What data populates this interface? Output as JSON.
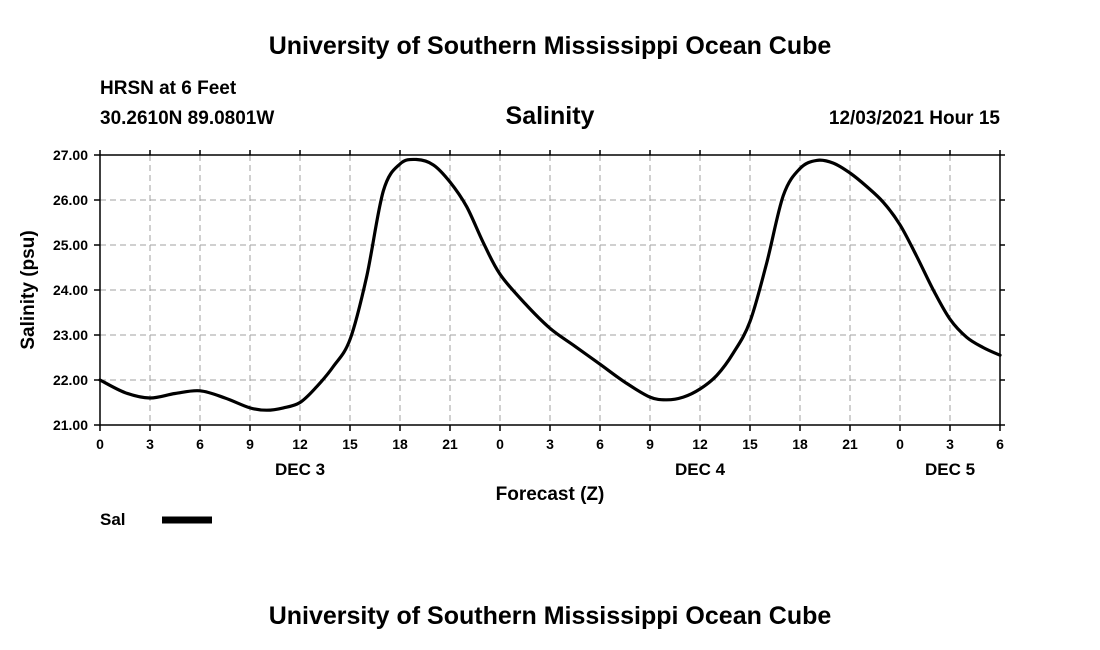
{
  "header": {
    "title": "University of Southern Mississippi Ocean Cube",
    "station": "HRSN at 6 Feet",
    "coords": "30.2610N  89.0801W",
    "date": "12/03/2021 Hour 15",
    "footer_title": "University of Southern Mississippi Ocean Cube"
  },
  "colors": {
    "line": "#000000",
    "grid": "#a0a0a0",
    "background": "#ffffff"
  },
  "chart_data": {
    "type": "line",
    "title": "Salinity",
    "xlabel": "Forecast (Z)",
    "ylabel": "Salinity (psu)",
    "xlim": [
      0,
      54
    ],
    "ylim": [
      21.0,
      27.0
    ],
    "x_tick_hours": [
      0,
      3,
      6,
      9,
      12,
      15,
      18,
      21,
      24,
      27,
      30,
      33,
      36,
      39,
      42,
      45,
      48,
      51,
      54
    ],
    "x_tick_labels": [
      "0",
      "3",
      "6",
      "9",
      "12",
      "15",
      "18",
      "21",
      "0",
      "3",
      "6",
      "9",
      "12",
      "15",
      "18",
      "21",
      "0",
      "3",
      "6"
    ],
    "y_ticks": [
      21,
      22,
      23,
      24,
      25,
      26,
      27
    ],
    "y_tick_labels": [
      "21.00",
      "22.00",
      "23.00",
      "24.00",
      "25.00",
      "26.00",
      "27.00"
    ],
    "day_labels": [
      {
        "hour": 12,
        "label": "DEC 3"
      },
      {
        "hour": 36,
        "label": "DEC 4"
      },
      {
        "hour": 51,
        "label": "DEC 5"
      }
    ],
    "grid": true,
    "legend": {
      "position": "bottom-left",
      "entries": [
        "Sal"
      ]
    },
    "series": [
      {
        "name": "Sal",
        "x": [
          0,
          1.5,
          3,
          4.5,
          6,
          7.5,
          9,
          10,
          11,
          12,
          13,
          14,
          15,
          16,
          17,
          18,
          19,
          20,
          21,
          22,
          23,
          24,
          25.5,
          27,
          28.5,
          30,
          31.5,
          33,
          34,
          35,
          36,
          37,
          38,
          39,
          40,
          41,
          42,
          43,
          44,
          45,
          46,
          47,
          48,
          49,
          50,
          51,
          52,
          53,
          54
        ],
        "values": [
          22.0,
          21.72,
          21.6,
          21.7,
          21.76,
          21.6,
          21.38,
          21.33,
          21.38,
          21.5,
          21.85,
          22.3,
          22.9,
          24.3,
          26.2,
          26.8,
          26.9,
          26.78,
          26.4,
          25.85,
          25.05,
          24.35,
          23.7,
          23.15,
          22.75,
          22.35,
          21.95,
          21.62,
          21.56,
          21.62,
          21.8,
          22.1,
          22.6,
          23.3,
          24.6,
          26.1,
          26.7,
          26.88,
          26.82,
          26.6,
          26.3,
          25.95,
          25.45,
          24.75,
          24.0,
          23.35,
          22.95,
          22.72,
          22.55
        ]
      }
    ]
  }
}
